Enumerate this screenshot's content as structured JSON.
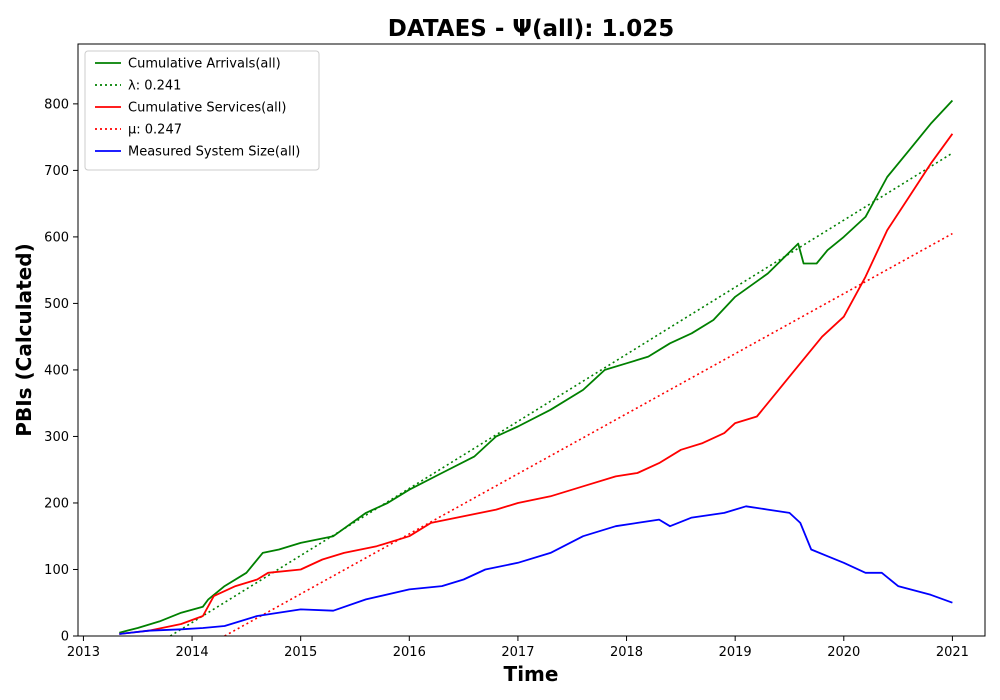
{
  "chart_data": {
    "type": "line",
    "title": "DATAES -  Ψ(all): 1.025",
    "xlabel": "Time",
    "ylabel": "PBIs (Calculated)",
    "xlim": [
      2012.95,
      2021.3
    ],
    "ylim": [
      0,
      890
    ],
    "xticks": [
      2013,
      2014,
      2015,
      2016,
      2017,
      2018,
      2019,
      2020,
      2021
    ],
    "yticks": [
      0,
      100,
      200,
      300,
      400,
      500,
      600,
      700,
      800
    ],
    "grid": false,
    "legend_position": "top-left",
    "series": [
      {
        "name": "Cumulative Arrivals(all)",
        "style": "solid",
        "color": "#008000",
        "x": [
          2013.33,
          2013.5,
          2013.7,
          2013.9,
          2014.1,
          2014.15,
          2014.3,
          2014.5,
          2014.65,
          2014.8,
          2015.0,
          2015.3,
          2015.6,
          2015.8,
          2016.0,
          2016.3,
          2016.6,
          2016.8,
          2017.0,
          2017.3,
          2017.6,
          2017.8,
          2018.0,
          2018.2,
          2018.4,
          2018.6,
          2018.8,
          2019.0,
          2019.3,
          2019.58,
          2019.63,
          2019.75,
          2019.85,
          2020.0,
          2020.2,
          2020.4,
          2020.6,
          2020.8,
          2021.0
        ],
        "y": [
          5,
          12,
          22,
          35,
          44,
          55,
          75,
          95,
          125,
          130,
          140,
          150,
          185,
          200,
          220,
          245,
          270,
          300,
          315,
          340,
          370,
          400,
          410,
          420,
          440,
          455,
          475,
          510,
          545,
          590,
          560,
          560,
          580,
          600,
          630,
          690,
          730,
          770,
          805
        ]
      },
      {
        "name": "λ: 0.241",
        "style": "dotted",
        "color": "#008000",
        "x": [
          2013.8,
          2021.0
        ],
        "y": [
          0,
          726
        ]
      },
      {
        "name": "Cumulative Services(all)",
        "style": "solid",
        "color": "#ff0000",
        "x": [
          2013.33,
          2013.6,
          2013.9,
          2014.1,
          2014.2,
          2014.4,
          2014.6,
          2014.7,
          2015.0,
          2015.2,
          2015.4,
          2015.7,
          2016.0,
          2016.2,
          2016.5,
          2016.8,
          2017.0,
          2017.3,
          2017.6,
          2017.9,
          2018.1,
          2018.3,
          2018.5,
          2018.7,
          2018.9,
          2019.0,
          2019.2,
          2019.4,
          2019.6,
          2019.8,
          2020.0,
          2020.2,
          2020.4,
          2020.6,
          2020.8,
          2021.0
        ],
        "y": [
          3,
          8,
          18,
          30,
          60,
          75,
          85,
          95,
          100,
          115,
          125,
          135,
          150,
          170,
          180,
          190,
          200,
          210,
          225,
          240,
          245,
          260,
          280,
          290,
          305,
          320,
          330,
          370,
          410,
          450,
          480,
          540,
          610,
          660,
          710,
          755
        ]
      },
      {
        "name": "μ: 0.247",
        "style": "dotted",
        "color": "#ff0000",
        "x": [
          2014.3,
          2021.0
        ],
        "y": [
          0,
          605
        ]
      },
      {
        "name": "Measured System Size(all)",
        "style": "solid",
        "color": "#0000ff",
        "x": [
          2013.33,
          2013.6,
          2013.9,
          2014.1,
          2014.3,
          2014.6,
          2015.0,
          2015.3,
          2015.6,
          2016.0,
          2016.3,
          2016.5,
          2016.7,
          2017.0,
          2017.3,
          2017.6,
          2017.9,
          2018.1,
          2018.3,
          2018.4,
          2018.6,
          2018.9,
          2019.1,
          2019.3,
          2019.5,
          2019.6,
          2019.7,
          2019.85,
          2020.0,
          2020.2,
          2020.35,
          2020.5,
          2020.8,
          2021.0
        ],
        "y": [
          3,
          8,
          10,
          12,
          15,
          30,
          40,
          38,
          55,
          70,
          75,
          85,
          100,
          110,
          125,
          150,
          165,
          170,
          175,
          165,
          178,
          185,
          195,
          190,
          185,
          170,
          130,
          120,
          110,
          95,
          95,
          75,
          62,
          50
        ]
      }
    ]
  }
}
